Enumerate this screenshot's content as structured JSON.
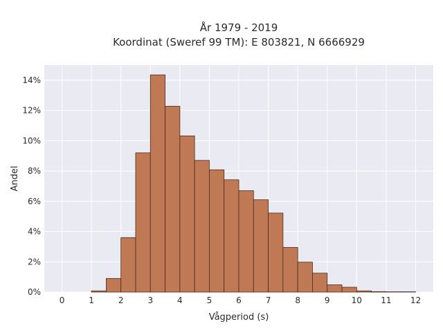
{
  "chart_data": {
    "type": "bar",
    "title_line1": "År 1979 - 2019",
    "title_line2": "Koordinat (Sweref 99 TM): E 803821, N 6666929",
    "xlabel": "Vågperiod (s)",
    "ylabel": "Andel",
    "xlim": [
      -0.6,
      12.6
    ],
    "ylim": [
      0,
      0.15
    ],
    "xticks": [
      0,
      1,
      2,
      3,
      4,
      5,
      6,
      7,
      8,
      9,
      10,
      11,
      12
    ],
    "xtick_labels": [
      "0",
      "1",
      "2",
      "3",
      "4",
      "5",
      "6",
      "7",
      "8",
      "9",
      "10",
      "11",
      "12"
    ],
    "yticks": [
      0,
      0.02,
      0.04,
      0.06,
      0.08,
      0.1,
      0.12,
      0.14
    ],
    "ytick_labels": [
      "0%",
      "2%",
      "4%",
      "6%",
      "8%",
      "10%",
      "12%",
      "14%"
    ],
    "bin_width": 0.5,
    "bins": [
      {
        "x0": 1.0,
        "x1": 1.5,
        "value": 0.0008
      },
      {
        "x0": 1.5,
        "x1": 2.0,
        "value": 0.009
      },
      {
        "x0": 2.0,
        "x1": 2.5,
        "value": 0.036
      },
      {
        "x0": 2.5,
        "x1": 3.0,
        "value": 0.092
      },
      {
        "x0": 3.0,
        "x1": 3.5,
        "value": 0.1435
      },
      {
        "x0": 3.5,
        "x1": 4.0,
        "value": 0.1228
      },
      {
        "x0": 4.0,
        "x1": 4.5,
        "value": 0.1032
      },
      {
        "x0": 4.5,
        "x1": 5.0,
        "value": 0.087
      },
      {
        "x0": 5.0,
        "x1": 5.5,
        "value": 0.0808
      },
      {
        "x0": 5.5,
        "x1": 6.0,
        "value": 0.0742
      },
      {
        "x0": 6.0,
        "x1": 6.5,
        "value": 0.067
      },
      {
        "x0": 6.5,
        "x1": 7.0,
        "value": 0.061
      },
      {
        "x0": 7.0,
        "x1": 7.5,
        "value": 0.0522
      },
      {
        "x0": 7.5,
        "x1": 8.0,
        "value": 0.0295
      },
      {
        "x0": 8.0,
        "x1": 8.5,
        "value": 0.0198
      },
      {
        "x0": 8.5,
        "x1": 9.0,
        "value": 0.0125
      },
      {
        "x0": 9.0,
        "x1": 9.5,
        "value": 0.0048
      },
      {
        "x0": 9.5,
        "x1": 10.0,
        "value": 0.0032
      },
      {
        "x0": 10.0,
        "x1": 10.5,
        "value": 0.0008
      },
      {
        "x0": 10.5,
        "x1": 11.0,
        "value": 0.0003
      },
      {
        "x0": 11.0,
        "x1": 11.5,
        "value": 0.0002
      },
      {
        "x0": 11.5,
        "x1": 12.0,
        "value": 0.0002
      }
    ],
    "grid": true,
    "colors": {
      "bar_fill": "#bf7a55",
      "bar_edge": "#4a2a1a",
      "plot_background": "#eaeaf2",
      "grid": "#ffffff"
    }
  }
}
